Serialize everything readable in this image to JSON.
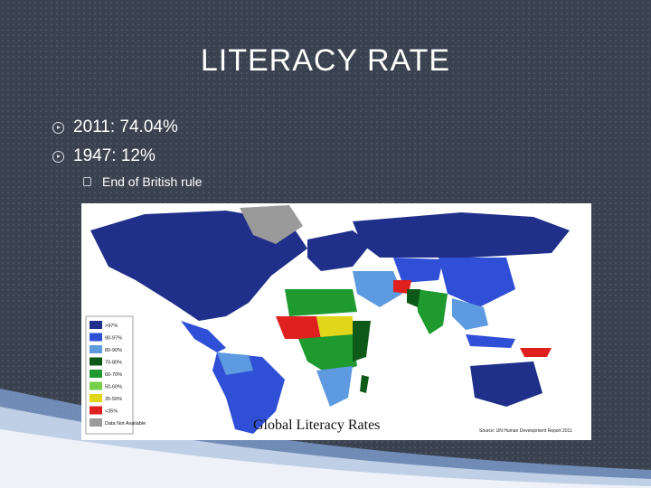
{
  "slide": {
    "title": "LITERACY RATE",
    "bullets": [
      {
        "text": "2011: 74.04%"
      },
      {
        "text": "1947: 12%"
      }
    ],
    "sub_bullet": {
      "text": "End of British rule"
    }
  },
  "map": {
    "title": "Global Literacy Rates",
    "source": "Source: UN Human Development Report 2011",
    "legend": [
      {
        "label": ">97%",
        "color": "#1f2f8a"
      },
      {
        "label": "90-97%",
        "color": "#2f4fd6"
      },
      {
        "label": "80-90%",
        "color": "#5d9ae0"
      },
      {
        "label": "70-80%",
        "color": "#0d5a18"
      },
      {
        "label": "60-70%",
        "color": "#1e9a2e"
      },
      {
        "label": "50-60%",
        "color": "#76d04a"
      },
      {
        "label": "35-50%",
        "color": "#e2d61a"
      },
      {
        "label": "<35%",
        "color": "#e01f1f"
      },
      {
        "label": "Data Not Available",
        "color": "#9a9a9a"
      }
    ]
  }
}
